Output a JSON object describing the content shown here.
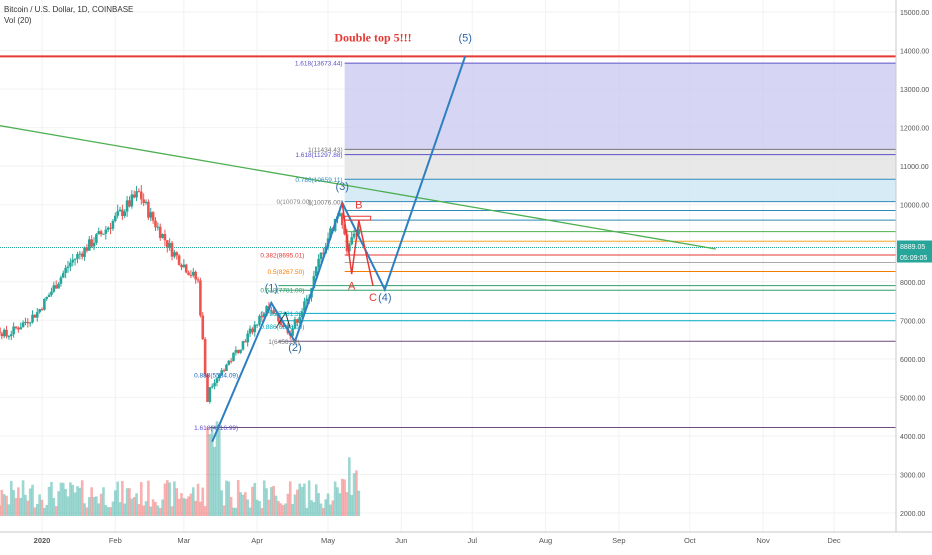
{
  "header": {
    "symbol": "Bitcoin / U.S. Dollar, 1D, COINBASE",
    "volume": "Vol (20)"
  },
  "chart_data": {
    "type": "candlestick",
    "price_axis": {
      "ticks": [
        "15000.00",
        "14000.00",
        "13000.00",
        "12000.00",
        "11000.00",
        "10000.00",
        "9000.00",
        "8000.00",
        "7000.00",
        "6000.00",
        "5000.00",
        "4000.00",
        "3000.00",
        "2000.00"
      ],
      "values": [
        15000,
        14000,
        13000,
        12000,
        11000,
        10000,
        9000,
        8000,
        7000,
        6000,
        5000,
        4000,
        3000,
        2000
      ],
      "range": [
        1600,
        15350
      ]
    },
    "time_axis": {
      "labels": [
        "2020",
        "Feb",
        "Mar",
        "Apr",
        "May",
        "Jun",
        "Jul",
        "Aug",
        "Sep",
        "Oct",
        "Nov",
        "Dec"
      ],
      "range": [
        "2019-12-01",
        "2020-12-31"
      ]
    },
    "current_price": {
      "label": "8889.05",
      "value": 8889.05,
      "color": "#26a69a"
    },
    "countdown": {
      "label": "05:09:05"
    },
    "annotations": {
      "title": "Double top 5!!!",
      "wave_labels": [
        {
          "text": "(1)",
          "x": "2020-04-07",
          "y": 7750
        },
        {
          "text": "(2)",
          "x": "2020-04-17",
          "y": 6200
        },
        {
          "text": "(3)",
          "x": "2020-05-07",
          "y": 10380
        },
        {
          "text": "(4)",
          "x": "2020-05-25",
          "y": 7500
        },
        {
          "text": "(5)",
          "x": "2020-06-28",
          "y": 14230
        }
      ],
      "abc_labels": [
        {
          "text": "A",
          "x": "2020-05-11",
          "y": 7800
        },
        {
          "text": "B",
          "x": "2020-05-14",
          "y": 9900
        },
        {
          "text": "C",
          "x": "2020-05-20",
          "y": 7500
        }
      ],
      "fib_labels": [
        {
          "text": "1.618(13673.44)",
          "y": 13673.44,
          "color": "#5b52c9"
        },
        {
          "text": "1(11434.43)",
          "y": 11434.43,
          "color": "#777777"
        },
        {
          "text": "1.618(11297.88)",
          "y": 11297.88,
          "color": "#5b52c9"
        },
        {
          "text": "0.786(10659.11)",
          "y": 10659.11,
          "color": "#2e8ab8"
        },
        {
          "text": "0(10079.00)",
          "y": 10079.0,
          "color": "#888888"
        },
        {
          "text": "1(10076.00)",
          "y": 10076.0,
          "color": "#777777"
        },
        {
          "text": "0.382(8695.01)",
          "y": 8695.01,
          "color": "#e53935"
        },
        {
          "text": "0.5(8267.50)",
          "y": 8267.5,
          "color": "#f57c00"
        },
        {
          "text": "0.618(7781.00)",
          "y": 7781.0,
          "color": "#2e9e6b"
        },
        {
          "text": "0.786(7181.32)",
          "y": 7181.32,
          "color": "#00acc1"
        },
        {
          "text": "0.886(6843.00)",
          "y": 6843.0,
          "color": "#00acc1"
        },
        {
          "text": "1(6456.00)",
          "y": 6456.0,
          "color": "#777777"
        },
        {
          "text": "0.888(5584.09)",
          "y": 5584.09,
          "color": "#1565c0"
        },
        {
          "text": "1.618(4216.99)",
          "y": 4216.99,
          "color": "#5b52c9"
        }
      ]
    }
  },
  "colors": {
    "up": "#26a69a",
    "down": "#ef5350",
    "wave": "#2e7fc2",
    "abc": "#e53935",
    "trendline": "#4caf50",
    "red_level": "#e53935",
    "fib_purple_zone": "#c8c8f0",
    "fib_gray_zone": "#e4e4e4",
    "fib_blue_zone": "#cfe7f5"
  }
}
